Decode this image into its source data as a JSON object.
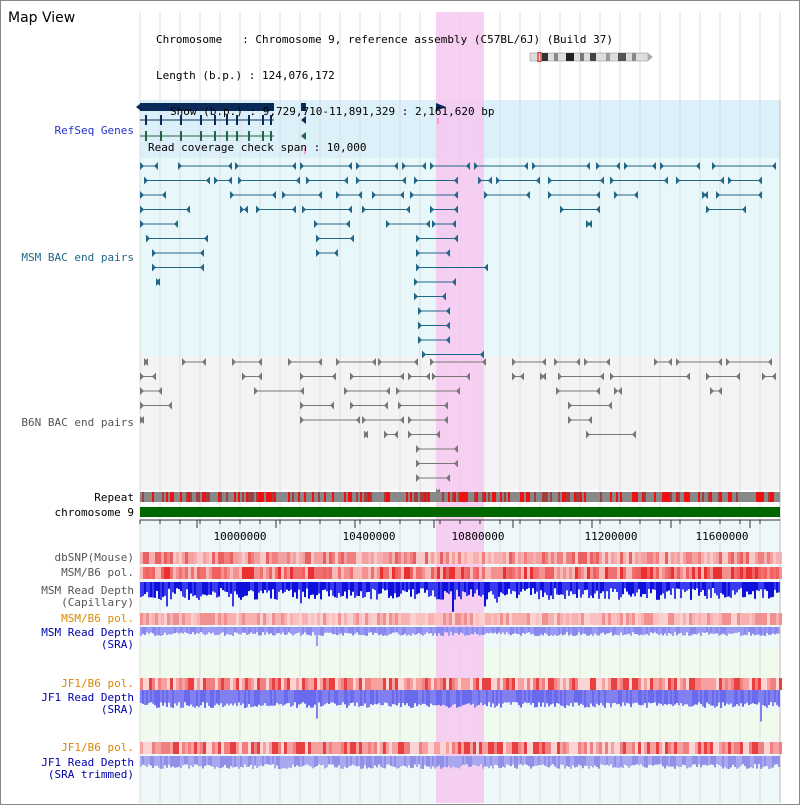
{
  "title": "Map View",
  "info": {
    "chromosome": "Chromosome   : Chromosome 9, reference assembly (C57BL/6J) (Build 37)",
    "length": "Length (b.p.) : 124,076,172",
    "show": "Show (b.p.) : 9,729,710-11,891,329 : 2,161,620 bp",
    "coverage": "Read coverage check span : 10,000"
  },
  "tracks": {
    "refseq": "RefSeq Genes",
    "msm_bac": "MSM BAC end pairs",
    "b6n_bac": "B6N BAC end pairs",
    "repeat": "Repeat",
    "chromosome": "chromosome 9",
    "dbsnp": "dbSNP(Mouse)",
    "msm_b6_pol_1": "MSM/B6 pol.",
    "msm_depth_cap_1": "MSM Read Depth",
    "msm_depth_cap_2": "(Capillary)",
    "msm_b6_pol_2": "MSM/B6 pol.",
    "msm_depth_sra_1": "MSM Read Depth",
    "msm_depth_sra_2": "(SRA)",
    "jf1_b6_pol_1": "JF1/B6 pol.",
    "jf1_depth_1": "JF1 Read Depth",
    "jf1_depth_2": "(SRA)",
    "jf1_b6_pol_2": "JF1/B6 pol.",
    "jf1_trim_1": "JF1 Read Depth",
    "jf1_trim_2": "(SRA trimmed)"
  },
  "axis": {
    "ticks": [
      "10000000",
      "10400000",
      "10800000",
      "11200000",
      "11600000"
    ]
  },
  "colors": {
    "refseq_label": "#2233cc",
    "msm_label": "#226688",
    "b6n_label": "#555555",
    "orange_label": "#dd8800",
    "blue_label": "#0000aa",
    "highlight": "#f6c8f0",
    "chrom_bar": "#006600"
  }
}
